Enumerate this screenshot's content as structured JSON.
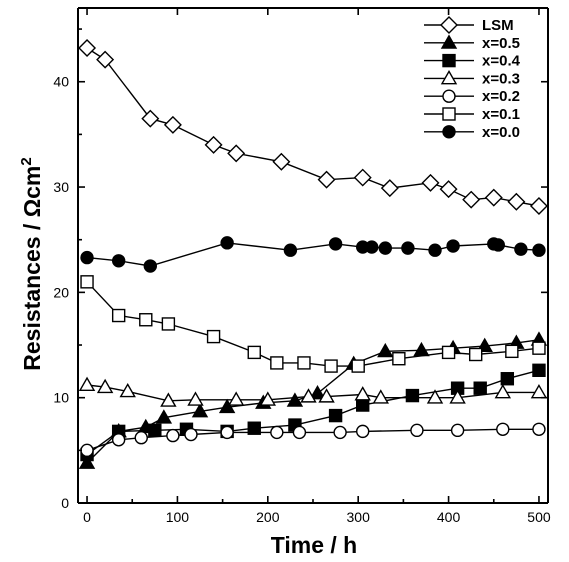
{
  "chart_data": {
    "type": "line",
    "xlabel": "Time / h",
    "ylabel": "Resistances / Ωcm",
    "ylabel_sup": "2",
    "xlim": [
      -10,
      510
    ],
    "ylim": [
      0,
      47
    ],
    "xticks": [
      0,
      100,
      200,
      300,
      400,
      500
    ],
    "yticks": [
      0,
      10,
      20,
      30,
      40
    ],
    "grid": false,
    "legend_position": "top-right",
    "series": [
      {
        "name": "LSM",
        "marker": "diamond-open",
        "x": [
          0,
          20,
          70,
          95,
          140,
          165,
          215,
          265,
          305,
          335,
          380,
          400,
          425,
          450,
          475,
          500
        ],
        "y": [
          43.2,
          42.1,
          36.5,
          35.9,
          34.0,
          33.2,
          32.4,
          30.7,
          30.9,
          29.9,
          30.4,
          29.8,
          28.8,
          29.0,
          28.6,
          28.2
        ]
      },
      {
        "name": "x=0.5",
        "marker": "triangle-filled",
        "x": [
          0,
          35,
          65,
          85,
          125,
          155,
          195,
          230,
          255,
          295,
          330,
          370,
          405,
          440,
          475,
          500
        ],
        "y": [
          3.8,
          6.8,
          7.2,
          8.1,
          8.7,
          9.1,
          9.5,
          9.7,
          10.4,
          13.2,
          14.4,
          14.5,
          14.7,
          14.9,
          15.2,
          15.5
        ]
      },
      {
        "name": "x=0.4",
        "marker": "square-filled",
        "x": [
          0,
          35,
          75,
          110,
          155,
          185,
          230,
          275,
          305,
          360,
          410,
          435,
          465,
          500
        ],
        "y": [
          4.6,
          6.8,
          6.9,
          7.0,
          6.8,
          7.1,
          7.4,
          8.3,
          9.3,
          10.2,
          10.9,
          10.9,
          11.8,
          12.6
        ]
      },
      {
        "name": "x=0.3",
        "marker": "triangle-open",
        "x": [
          0,
          20,
          45,
          90,
          120,
          165,
          200,
          245,
          265,
          305,
          325,
          385,
          410,
          460,
          500
        ],
        "y": [
          11.2,
          11.0,
          10.6,
          9.7,
          9.8,
          9.8,
          9.8,
          10.1,
          10.1,
          10.3,
          10.0,
          10.0,
          10.0,
          10.5,
          10.5
        ]
      },
      {
        "name": "x=0.2",
        "marker": "circle-open",
        "x": [
          0,
          35,
          60,
          95,
          115,
          155,
          210,
          235,
          280,
          305,
          365,
          410,
          460,
          500
        ],
        "y": [
          5.0,
          6.0,
          6.2,
          6.4,
          6.5,
          6.7,
          6.7,
          6.7,
          6.7,
          6.8,
          6.9,
          6.9,
          7.0,
          7.0
        ]
      },
      {
        "name": "x=0.1",
        "marker": "square-open",
        "x": [
          0,
          35,
          65,
          90,
          140,
          185,
          210,
          240,
          270,
          300,
          345,
          400,
          430,
          470,
          500
        ],
        "y": [
          21.0,
          17.8,
          17.4,
          17.0,
          15.8,
          14.3,
          13.3,
          13.3,
          13.0,
          13.0,
          13.7,
          14.3,
          14.1,
          14.4,
          14.7
        ]
      },
      {
        "name": "x=0.0",
        "marker": "circle-filled",
        "x": [
          0,
          35,
          70,
          155,
          225,
          275,
          305,
          315,
          330,
          355,
          385,
          405,
          450,
          455,
          480,
          500
        ],
        "y": [
          23.3,
          23.0,
          22.5,
          24.7,
          24.0,
          24.6,
          24.3,
          24.3,
          24.2,
          24.2,
          24.0,
          24.4,
          24.6,
          24.5,
          24.1,
          24.0
        ]
      }
    ]
  }
}
